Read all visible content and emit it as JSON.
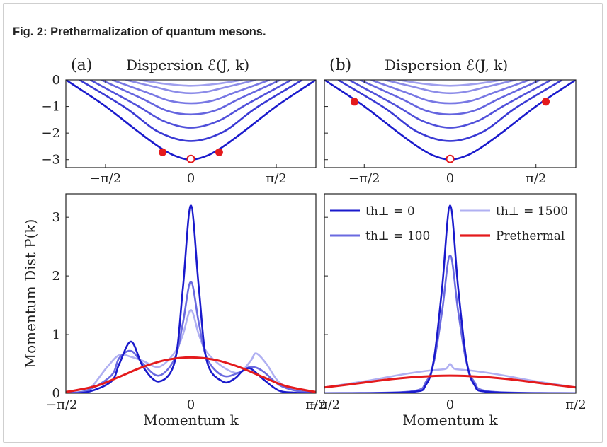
{
  "caption": "Fig. 2: Prethermalization of quantum mesons.",
  "colors": {
    "dark_blue": "#1a1acc",
    "mid_blue": "#6a6ae0",
    "light_blue": "#b0b0f2",
    "red": "#e41a1c"
  },
  "chart_data": [
    {
      "panel": "top-left",
      "type": "line",
      "panel_label": "(a)",
      "title": "Dispersion ℰ(J, k)",
      "x_ticks": [
        "−π/2",
        "0",
        "π/2"
      ],
      "y_ticks": [
        "0",
        "−1",
        "−2",
        "−3"
      ],
      "xlim": [
        -2.3,
        2.3
      ],
      "ylim": [
        -3.3,
        0
      ],
      "series": [
        {
          "values_k": [
            -2.3,
            -1.6,
            -1.0,
            -0.6,
            -0.3,
            0,
            0.3,
            0.6,
            1.0,
            1.6,
            2.3
          ],
          "values_E": [
            0,
            -0.95,
            -1.9,
            -2.5,
            -2.85,
            -3.0,
            -2.85,
            -2.5,
            -1.9,
            -0.95,
            0
          ]
        },
        {
          "values_k": [
            -2.05,
            -1.2,
            -0.6,
            0,
            0.6,
            1.2,
            2.05
          ],
          "values_E": [
            0,
            -1.05,
            -1.95,
            -2.3,
            -1.95,
            -1.05,
            0
          ]
        },
        {
          "values_k": [
            -1.85,
            -1.0,
            -0.5,
            0,
            0.5,
            1.0,
            1.85
          ],
          "values_E": [
            0,
            -0.95,
            -1.55,
            -1.8,
            -1.55,
            -0.95,
            0
          ]
        },
        {
          "values_k": [
            -1.65,
            -0.9,
            -0.45,
            0,
            0.45,
            0.9,
            1.65
          ],
          "values_E": [
            0,
            -0.7,
            -1.15,
            -1.3,
            -1.15,
            -0.7,
            0
          ]
        },
        {
          "values_k": [
            -1.45,
            -0.8,
            -0.4,
            0,
            0.4,
            0.8,
            1.45
          ],
          "values_E": [
            0,
            -0.48,
            -0.78,
            -0.88,
            -0.78,
            -0.48,
            0
          ]
        },
        {
          "values_k": [
            -1.2,
            -0.65,
            -0.3,
            0,
            0.3,
            0.65,
            1.2
          ],
          "values_E": [
            0,
            -0.27,
            -0.44,
            -0.5,
            -0.44,
            -0.27,
            0
          ]
        },
        {
          "values_k": [
            -0.95,
            -0.5,
            0,
            0.5,
            0.95
          ],
          "values_E": [
            0,
            -0.14,
            -0.22,
            -0.14,
            0
          ]
        }
      ],
      "markers": {
        "filled": [
          [
            -0.52,
            -2.72
          ],
          [
            0.52,
            -2.72
          ]
        ],
        "open": [
          [
            0,
            -3.0
          ]
        ]
      }
    },
    {
      "panel": "top-right",
      "type": "line",
      "panel_label": "(b)",
      "title": "Dispersion ℰ(J, k)",
      "x_ticks": [
        "−π/2",
        "0",
        "π/2"
      ],
      "y_ticks": [
        "0",
        "−1",
        "−2",
        "−3"
      ],
      "xlim": [
        -2.3,
        2.3
      ],
      "ylim": [
        -3.3,
        0
      ],
      "series": "same as (a)",
      "markers": {
        "filled": [
          [
            -1.75,
            -0.82
          ],
          [
            1.75,
            -0.82
          ]
        ],
        "open": [
          [
            0,
            -3.0
          ]
        ]
      }
    },
    {
      "panel": "bottom-left",
      "type": "line",
      "xlabel": "Momentum k",
      "ylabel": "Momentum Dist P(k)",
      "x_ticks": [
        "−π/2",
        "0",
        "π/2"
      ],
      "y_ticks": [
        "0",
        "1",
        "2",
        "3"
      ],
      "xlim": [
        -1.5708,
        1.5708
      ],
      "ylim": [
        0,
        3.4
      ],
      "series": [
        {
          "legend": "th⊥ = 0",
          "color": "dark_blue",
          "x": [
            -1.571,
            -1.3,
            -1.0,
            -0.9,
            -0.75,
            -0.6,
            -0.4,
            -0.2,
            -0.1,
            0,
            0.1,
            0.2,
            0.4,
            0.55,
            0.65,
            0.75,
            0.9,
            1.1,
            1.3,
            1.571
          ],
          "y": [
            0,
            0.02,
            0.2,
            0.5,
            0.88,
            0.45,
            0.2,
            0.55,
            1.8,
            3.2,
            1.8,
            0.55,
            0.2,
            0.25,
            0.38,
            0.42,
            0.25,
            0.05,
            0.01,
            0
          ]
        },
        {
          "legend": "th⊥ = 100",
          "color": "mid_blue",
          "x": [
            -1.571,
            -1.3,
            -1.0,
            -0.9,
            -0.75,
            -0.6,
            -0.4,
            -0.2,
            -0.1,
            0,
            0.1,
            0.2,
            0.4,
            0.6,
            0.75,
            0.9,
            1.1,
            1.3,
            1.571
          ],
          "y": [
            0,
            0.05,
            0.3,
            0.6,
            0.72,
            0.5,
            0.3,
            0.6,
            1.2,
            1.9,
            1.2,
            0.6,
            0.3,
            0.35,
            0.45,
            0.38,
            0.15,
            0.05,
            0
          ]
        },
        {
          "legend": "th⊥ = 1500",
          "color": "light_blue",
          "x": [
            -1.571,
            -1.3,
            -1.05,
            -0.9,
            -0.75,
            -0.6,
            -0.4,
            -0.2,
            -0.1,
            0,
            0.1,
            0.2,
            0.4,
            0.6,
            0.75,
            0.82,
            0.95,
            1.1,
            1.3,
            1.571
          ],
          "y": [
            0,
            0.05,
            0.45,
            0.65,
            0.62,
            0.55,
            0.45,
            0.7,
            1.0,
            1.42,
            1.0,
            0.7,
            0.45,
            0.35,
            0.55,
            0.68,
            0.5,
            0.2,
            0.05,
            0
          ]
        },
        {
          "legend": "Prethermal",
          "color": "red",
          "x": [
            -1.571,
            -1.2,
            -0.9,
            -0.6,
            -0.3,
            0,
            0.3,
            0.6,
            0.9,
            1.2,
            1.571
          ],
          "y": [
            0.02,
            0.12,
            0.28,
            0.45,
            0.57,
            0.61,
            0.57,
            0.45,
            0.28,
            0.12,
            0.02
          ]
        }
      ]
    },
    {
      "panel": "bottom-right",
      "type": "line",
      "xlabel": "Momentum k",
      "x_ticks": [
        "−π/2",
        "0",
        "π/2"
      ],
      "xlim": [
        -1.5708,
        1.5708
      ],
      "ylim": [
        0,
        3.4
      ],
      "legend_position": "top",
      "series": [
        {
          "legend": "th⊥ = 0",
          "color": "dark_blue",
          "x": [
            -1.571,
            -0.5,
            -0.3,
            -0.2,
            -0.1,
            0,
            0.1,
            0.2,
            0.3,
            0.5,
            1.571
          ],
          "y": [
            0,
            0.02,
            0.15,
            0.6,
            1.8,
            3.2,
            1.8,
            0.6,
            0.15,
            0.02,
            0
          ]
        },
        {
          "legend": "th⊥ = 100",
          "color": "mid_blue",
          "x": [
            -1.571,
            -0.5,
            -0.3,
            -0.2,
            -0.1,
            0,
            0.1,
            0.2,
            0.3,
            0.5,
            1.571
          ],
          "y": [
            0,
            0.03,
            0.2,
            0.55,
            1.4,
            2.35,
            1.4,
            0.55,
            0.2,
            0.03,
            0
          ]
        },
        {
          "legend": "th⊥ = 1500",
          "color": "light_blue",
          "x": [
            -1.571,
            -1.0,
            -0.6,
            -0.3,
            -0.15,
            -0.05,
            0,
            0.05,
            0.15,
            0.3,
            0.6,
            1.0,
            1.571
          ],
          "y": [
            0.1,
            0.22,
            0.32,
            0.38,
            0.4,
            0.42,
            0.5,
            0.42,
            0.4,
            0.38,
            0.32,
            0.22,
            0.1
          ]
        },
        {
          "legend": "Prethermal",
          "color": "red",
          "x": [
            -1.571,
            -1.2,
            -0.8,
            -0.4,
            0,
            0.4,
            0.8,
            1.2,
            1.571
          ],
          "y": [
            0.1,
            0.16,
            0.23,
            0.28,
            0.3,
            0.28,
            0.23,
            0.16,
            0.1
          ]
        }
      ]
    }
  ]
}
